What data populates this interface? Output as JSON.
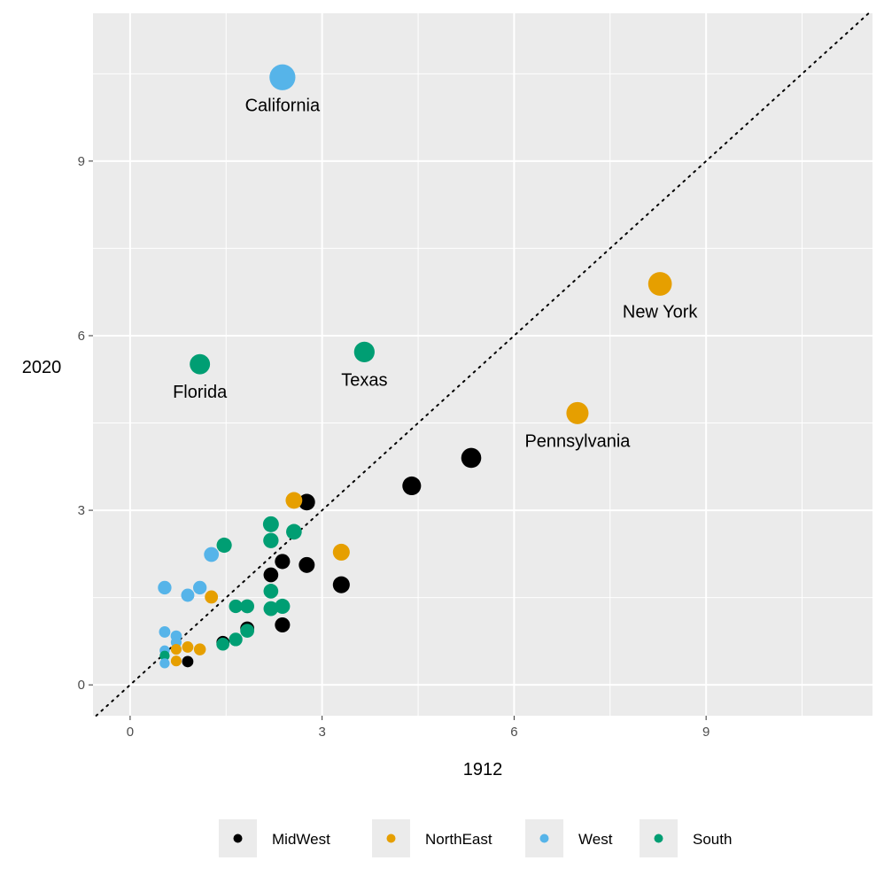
{
  "chart_data": {
    "type": "scatter",
    "xlabel": "1912",
    "ylabel": "2020",
    "xlim": [
      -0.58,
      11.6
    ],
    "ylim": [
      -0.53,
      11.54
    ],
    "xticks": [
      "0",
      "3",
      "6",
      "9"
    ],
    "yticks": [
      "0",
      "3",
      "6",
      "9"
    ],
    "grid": true,
    "reference_line": "y = x (dotted)",
    "legend_position": "bottom",
    "colors": {
      "MidWest": "#000000",
      "NorthEast": "#E69F00",
      "West": "#56B4E9",
      "South": "#009E73"
    },
    "legend": [
      "MidWest",
      "NorthEast",
      "West",
      "South"
    ],
    "points": [
      {
        "x": 2.38,
        "y": 10.44,
        "group": "West",
        "label": "California"
      },
      {
        "x": 3.66,
        "y": 5.72,
        "group": "South",
        "label": "Texas"
      },
      {
        "x": 1.09,
        "y": 5.51,
        "group": "South",
        "label": "Florida"
      },
      {
        "x": 8.28,
        "y": 6.89,
        "group": "NorthEast",
        "label": "New York"
      },
      {
        "x": 6.99,
        "y": 4.67,
        "group": "NorthEast",
        "label": "Pennsylvania"
      },
      {
        "x": 5.33,
        "y": 3.9,
        "group": "MidWest"
      },
      {
        "x": 4.4,
        "y": 3.42,
        "group": "MidWest"
      },
      {
        "x": 2.76,
        "y": 3.14,
        "group": "MidWest"
      },
      {
        "x": 2.56,
        "y": 3.17,
        "group": "NorthEast"
      },
      {
        "x": 2.2,
        "y": 2.76,
        "group": "South"
      },
      {
        "x": 2.56,
        "y": 2.63,
        "group": "South"
      },
      {
        "x": 2.2,
        "y": 2.48,
        "group": "South"
      },
      {
        "x": 1.47,
        "y": 2.4,
        "group": "South"
      },
      {
        "x": 1.27,
        "y": 2.24,
        "group": "West"
      },
      {
        "x": 3.3,
        "y": 2.28,
        "group": "NorthEast"
      },
      {
        "x": 2.38,
        "y": 2.12,
        "group": "MidWest"
      },
      {
        "x": 2.76,
        "y": 2.06,
        "group": "MidWest"
      },
      {
        "x": 2.2,
        "y": 1.89,
        "group": "MidWest"
      },
      {
        "x": 3.3,
        "y": 1.72,
        "group": "MidWest"
      },
      {
        "x": 0.54,
        "y": 1.67,
        "group": "West"
      },
      {
        "x": 1.09,
        "y": 1.67,
        "group": "West"
      },
      {
        "x": 0.9,
        "y": 1.54,
        "group": "West"
      },
      {
        "x": 1.27,
        "y": 1.51,
        "group": "NorthEast"
      },
      {
        "x": 2.2,
        "y": 1.61,
        "group": "South"
      },
      {
        "x": 1.65,
        "y": 1.35,
        "group": "South"
      },
      {
        "x": 1.83,
        "y": 1.35,
        "group": "South"
      },
      {
        "x": 2.2,
        "y": 1.31,
        "group": "South"
      },
      {
        "x": 2.38,
        "y": 1.35,
        "group": "South"
      },
      {
        "x": 2.38,
        "y": 1.03,
        "group": "MidWest"
      },
      {
        "x": 1.83,
        "y": 0.97,
        "group": "MidWest"
      },
      {
        "x": 1.83,
        "y": 0.93,
        "group": "South"
      },
      {
        "x": 1.65,
        "y": 0.78,
        "group": "South"
      },
      {
        "x": 1.45,
        "y": 0.73,
        "group": "MidWest"
      },
      {
        "x": 1.45,
        "y": 0.7,
        "group": "South"
      },
      {
        "x": 0.54,
        "y": 0.91,
        "group": "West"
      },
      {
        "x": 0.72,
        "y": 0.84,
        "group": "West"
      },
      {
        "x": 0.72,
        "y": 0.73,
        "group": "West"
      },
      {
        "x": 0.9,
        "y": 0.65,
        "group": "NorthEast"
      },
      {
        "x": 1.09,
        "y": 0.61,
        "group": "NorthEast"
      },
      {
        "x": 0.72,
        "y": 0.61,
        "group": "NorthEast"
      },
      {
        "x": 0.54,
        "y": 0.59,
        "group": "West"
      },
      {
        "x": 0.54,
        "y": 0.5,
        "group": "South"
      },
      {
        "x": 0.72,
        "y": 0.41,
        "group": "NorthEast"
      },
      {
        "x": 0.9,
        "y": 0.4,
        "group": "MidWest"
      },
      {
        "x": 0.54,
        "y": 0.37,
        "group": "West"
      }
    ]
  }
}
